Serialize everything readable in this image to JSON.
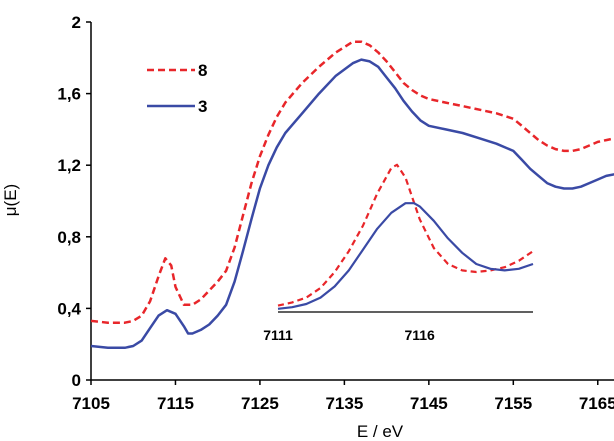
{
  "chart_data": [
    {
      "type": "line",
      "xlabel": "E / eV",
      "ylabel": "μ(E)",
      "xlim": [
        7105,
        7170
      ],
      "ylim": [
        0,
        2
      ],
      "xticks": [
        "7105",
        "7115",
        "7125",
        "7135",
        "7145",
        "7155",
        "7165"
      ],
      "yticks": [
        "0",
        "0,4",
        "0,8",
        "1,2",
        "1,6",
        "2"
      ],
      "legend": "top-left",
      "series": [
        {
          "name": "8",
          "color": "#e8262a",
          "style": "dashed",
          "x": [
            7105,
            7107,
            7109,
            7110,
            7111,
            7112,
            7113,
            7113.8,
            7114.5,
            7115,
            7116,
            7117,
            7118,
            7119,
            7120,
            7121,
            7122,
            7123,
            7124,
            7125,
            7126,
            7127,
            7128,
            7130,
            7132,
            7134,
            7136,
            7137,
            7138,
            7139,
            7140,
            7141,
            7142,
            7143,
            7144,
            7145,
            7147,
            7149,
            7151,
            7153,
            7155,
            7156,
            7157,
            7158,
            7159,
            7160,
            7161,
            7162,
            7163,
            7164,
            7165,
            7166,
            7167,
            7168,
            7170
          ],
          "y": [
            0.33,
            0.32,
            0.32,
            0.33,
            0.36,
            0.44,
            0.58,
            0.68,
            0.64,
            0.52,
            0.42,
            0.42,
            0.45,
            0.5,
            0.55,
            0.61,
            0.74,
            0.92,
            1.1,
            1.25,
            1.37,
            1.47,
            1.55,
            1.66,
            1.75,
            1.83,
            1.89,
            1.89,
            1.87,
            1.83,
            1.78,
            1.72,
            1.66,
            1.62,
            1.59,
            1.57,
            1.55,
            1.53,
            1.51,
            1.49,
            1.46,
            1.42,
            1.38,
            1.34,
            1.31,
            1.29,
            1.28,
            1.28,
            1.29,
            1.31,
            1.33,
            1.34,
            1.35,
            1.36,
            1.36
          ]
        },
        {
          "name": "3",
          "color": "#3a4aa5",
          "style": "solid",
          "x": [
            7105,
            7107,
            7109,
            7110,
            7111,
            7112,
            7113,
            7114,
            7115,
            7116,
            7116.5,
            7117,
            7118,
            7119,
            7120,
            7121,
            7122,
            7123,
            7124,
            7125,
            7126,
            7127,
            7128,
            7130,
            7132,
            7134,
            7136,
            7137,
            7138,
            7139,
            7140,
            7141,
            7142,
            7143,
            7144,
            7145,
            7147,
            7149,
            7151,
            7153,
            7155,
            7156,
            7157,
            7158,
            7159,
            7160,
            7161,
            7162,
            7163,
            7164,
            7165,
            7166,
            7167,
            7168,
            7170
          ],
          "y": [
            0.19,
            0.18,
            0.18,
            0.19,
            0.22,
            0.29,
            0.36,
            0.39,
            0.37,
            0.3,
            0.26,
            0.26,
            0.28,
            0.31,
            0.36,
            0.42,
            0.55,
            0.72,
            0.9,
            1.07,
            1.2,
            1.3,
            1.38,
            1.49,
            1.6,
            1.7,
            1.77,
            1.79,
            1.78,
            1.75,
            1.69,
            1.63,
            1.56,
            1.5,
            1.45,
            1.42,
            1.4,
            1.38,
            1.35,
            1.32,
            1.28,
            1.23,
            1.18,
            1.14,
            1.1,
            1.08,
            1.07,
            1.07,
            1.08,
            1.1,
            1.12,
            1.14,
            1.15,
            1.16,
            1.17
          ]
        }
      ]
    },
    {
      "type": "line",
      "description": "inset: pre-edge region",
      "xlim": [
        7111,
        7120
      ],
      "xticks": [
        "7111",
        "7116"
      ],
      "series": [
        {
          "name": "8",
          "color": "#e8262a",
          "style": "dashed",
          "x": [
            7111,
            7111.5,
            7112,
            7112.5,
            7113,
            7113.5,
            7114,
            7114.5,
            7115,
            7115.2,
            7115.5,
            7116,
            7116.5,
            7117,
            7117.5,
            7118,
            7118.5,
            7119,
            7119.5,
            7120
          ],
          "y": [
            0.04,
            0.06,
            0.09,
            0.15,
            0.25,
            0.38,
            0.54,
            0.74,
            0.9,
            0.92,
            0.84,
            0.58,
            0.4,
            0.3,
            0.26,
            0.25,
            0.26,
            0.28,
            0.32,
            0.38
          ]
        },
        {
          "name": "3",
          "color": "#3a4aa5",
          "style": "solid",
          "x": [
            7111,
            7111.5,
            7112,
            7112.5,
            7113,
            7113.5,
            7114,
            7114.5,
            7115,
            7115.5,
            7115.8,
            7116,
            7116.5,
            7117,
            7117.5,
            7118,
            7118.5,
            7119,
            7119.5,
            7120
          ],
          "y": [
            0.02,
            0.03,
            0.05,
            0.09,
            0.16,
            0.26,
            0.39,
            0.52,
            0.62,
            0.68,
            0.68,
            0.66,
            0.57,
            0.46,
            0.37,
            0.3,
            0.27,
            0.26,
            0.27,
            0.3
          ]
        }
      ]
    }
  ]
}
